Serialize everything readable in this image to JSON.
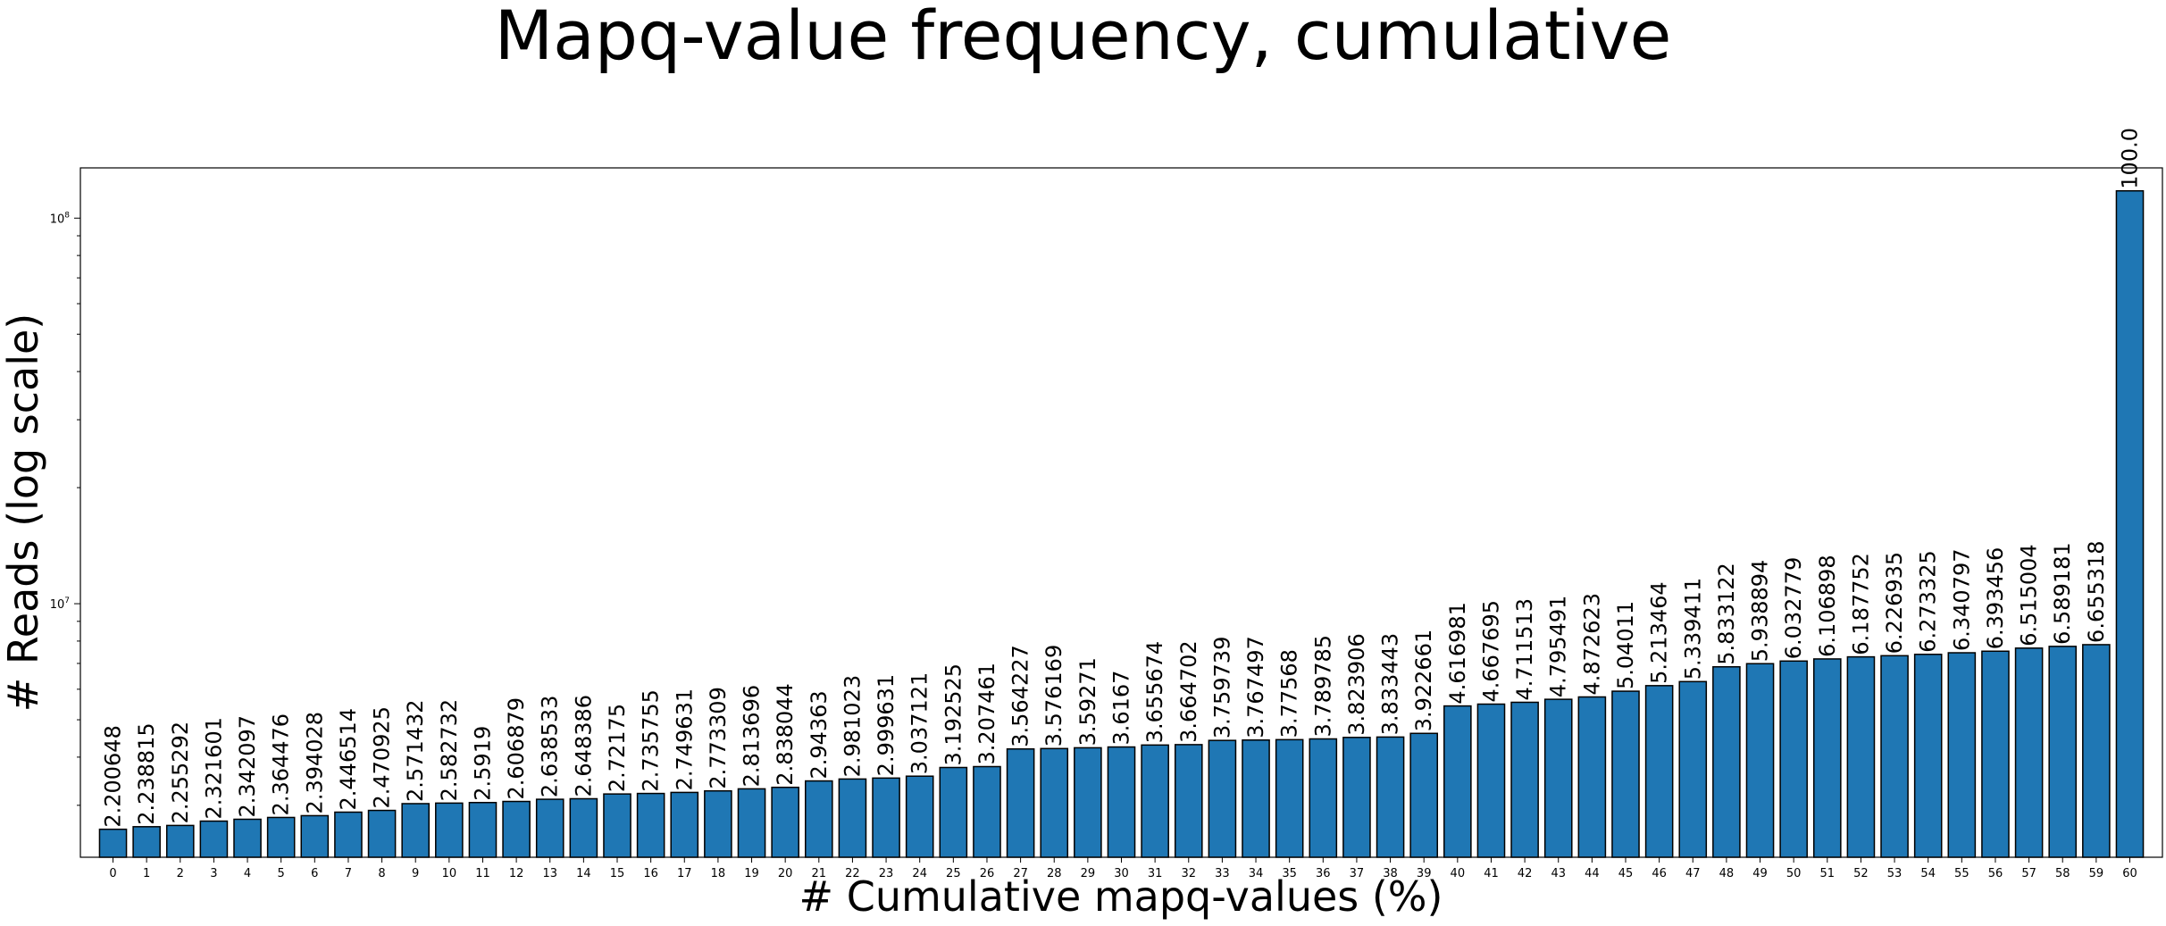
{
  "chart_data": {
    "type": "bar",
    "title": "Mapq-value frequency, cumulative",
    "xlabel": "# Cumulative mapq-values (%)",
    "ylabel": "# Reads (log scale)",
    "y_scale": "log",
    "y_tick_labels": [
      "10^7",
      "10^8"
    ],
    "ylim": [
      2200000,
      135000000
    ],
    "bar_color": "#1f77b4",
    "categories": [
      "0",
      "1",
      "2",
      "3",
      "4",
      "5",
      "6",
      "7",
      "8",
      "9",
      "10",
      "11",
      "12",
      "13",
      "14",
      "15",
      "16",
      "17",
      "18",
      "19",
      "20",
      "21",
      "22",
      "23",
      "24",
      "25",
      "26",
      "27",
      "28",
      "29",
      "30",
      "31",
      "32",
      "33",
      "34",
      "35",
      "36",
      "37",
      "38",
      "39",
      "40",
      "41",
      "42",
      "43",
      "44",
      "45",
      "46",
      "47",
      "48",
      "49",
      "50",
      "51",
      "52",
      "53",
      "54",
      "55",
      "56",
      "57",
      "58",
      "59",
      "60"
    ],
    "values": [
      2600000,
      2640000,
      2660000,
      2730000,
      2760000,
      2790000,
      2820000,
      2880000,
      2910000,
      3030000,
      3040000,
      3050000,
      3070000,
      3110000,
      3120000,
      3210000,
      3220000,
      3240000,
      3270000,
      3310000,
      3340000,
      3470000,
      3510000,
      3530000,
      3570000,
      3760000,
      3780000,
      4200000,
      4210000,
      4230000,
      4250000,
      4300000,
      4310000,
      4420000,
      4430000,
      4440000,
      4460000,
      4500000,
      4510000,
      4610000,
      5430000,
      5490000,
      5550000,
      5650000,
      5730000,
      5930000,
      6130000,
      6280000,
      6860000,
      6990000,
      7100000,
      7190000,
      7280000,
      7330000,
      7390000,
      7460000,
      7530000,
      7670000,
      7750000,
      7830000,
      117700000
    ],
    "labels": [
      "2.200648",
      "2.238815",
      "2.255292",
      "2.321601",
      "2.342097",
      "2.364476",
      "2.394028",
      "2.446514",
      "2.470925",
      "2.571432",
      "2.582732",
      "2.5919",
      "2.606879",
      "2.638533",
      "2.648386",
      "2.72175",
      "2.735755",
      "2.749631",
      "2.773309",
      "2.813696",
      "2.838044",
      "2.94363",
      "2.981023",
      "2.999631",
      "3.037121",
      "3.192525",
      "3.207461",
      "3.564227",
      "3.576169",
      "3.59271",
      "3.6167",
      "3.655674",
      "3.664702",
      "3.759739",
      "3.767497",
      "3.77568",
      "3.789785",
      "3.823906",
      "3.833443",
      "3.922661",
      "4.616981",
      "4.667695",
      "4.711513",
      "4.795491",
      "4.872623",
      "5.04011",
      "5.213464",
      "5.339411",
      "5.833122",
      "5.938894",
      "6.032779",
      "6.106898",
      "6.187752",
      "6.226935",
      "6.273325",
      "6.340797",
      "6.393456",
      "6.515004",
      "6.589181",
      "6.655318",
      "100.0"
    ]
  }
}
